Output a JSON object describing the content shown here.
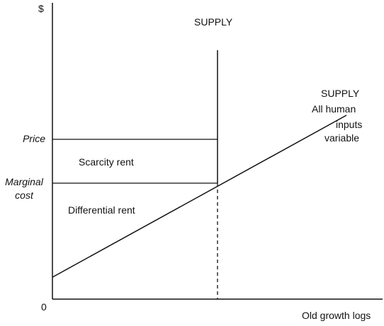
{
  "axes": {
    "y_unit": "$",
    "origin": "0",
    "x_label": "Old growth logs"
  },
  "y_axis_labels": {
    "price": "Price",
    "marginal_cost_line1": "Marginal",
    "marginal_cost_line2": "cost"
  },
  "curves": {
    "vertical_supply": "SUPPLY",
    "variable_supply_title": "SUPPLY",
    "variable_supply_line1": "All human",
    "variable_supply_line2": "inputs",
    "variable_supply_line3": "variable"
  },
  "regions": {
    "scarcity_rent": "Scarcity rent",
    "differential_rent": "Differential rent"
  }
}
